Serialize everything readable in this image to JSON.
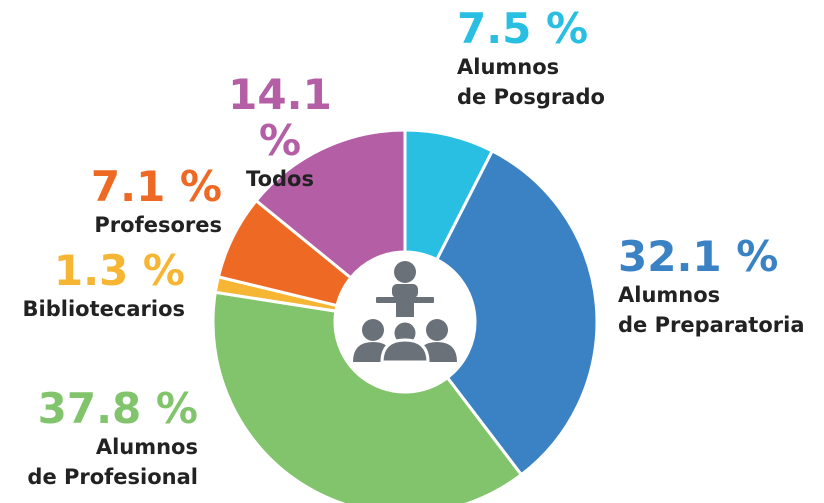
{
  "chart_data": {
    "type": "donut",
    "categories": [
      "Alumnos\nde Posgrado",
      "Alumnos\nde Preparatoria",
      "Alumnos\nde Profesional",
      "Bibliotecarios",
      "Profesores",
      "Todos"
    ],
    "values": [
      7.5,
      32.1,
      37.8,
      1.3,
      7.1,
      14.1
    ],
    "value_labels": [
      "7.5 %",
      "32.1 %",
      "37.8 %",
      "1.3 %",
      "7.1 %",
      "14.1 %"
    ],
    "colors": [
      "#29bfe2",
      "#3b82c4",
      "#82c46c",
      "#f6b533",
      "#ee6a24",
      "#b35ea5"
    ]
  }
}
